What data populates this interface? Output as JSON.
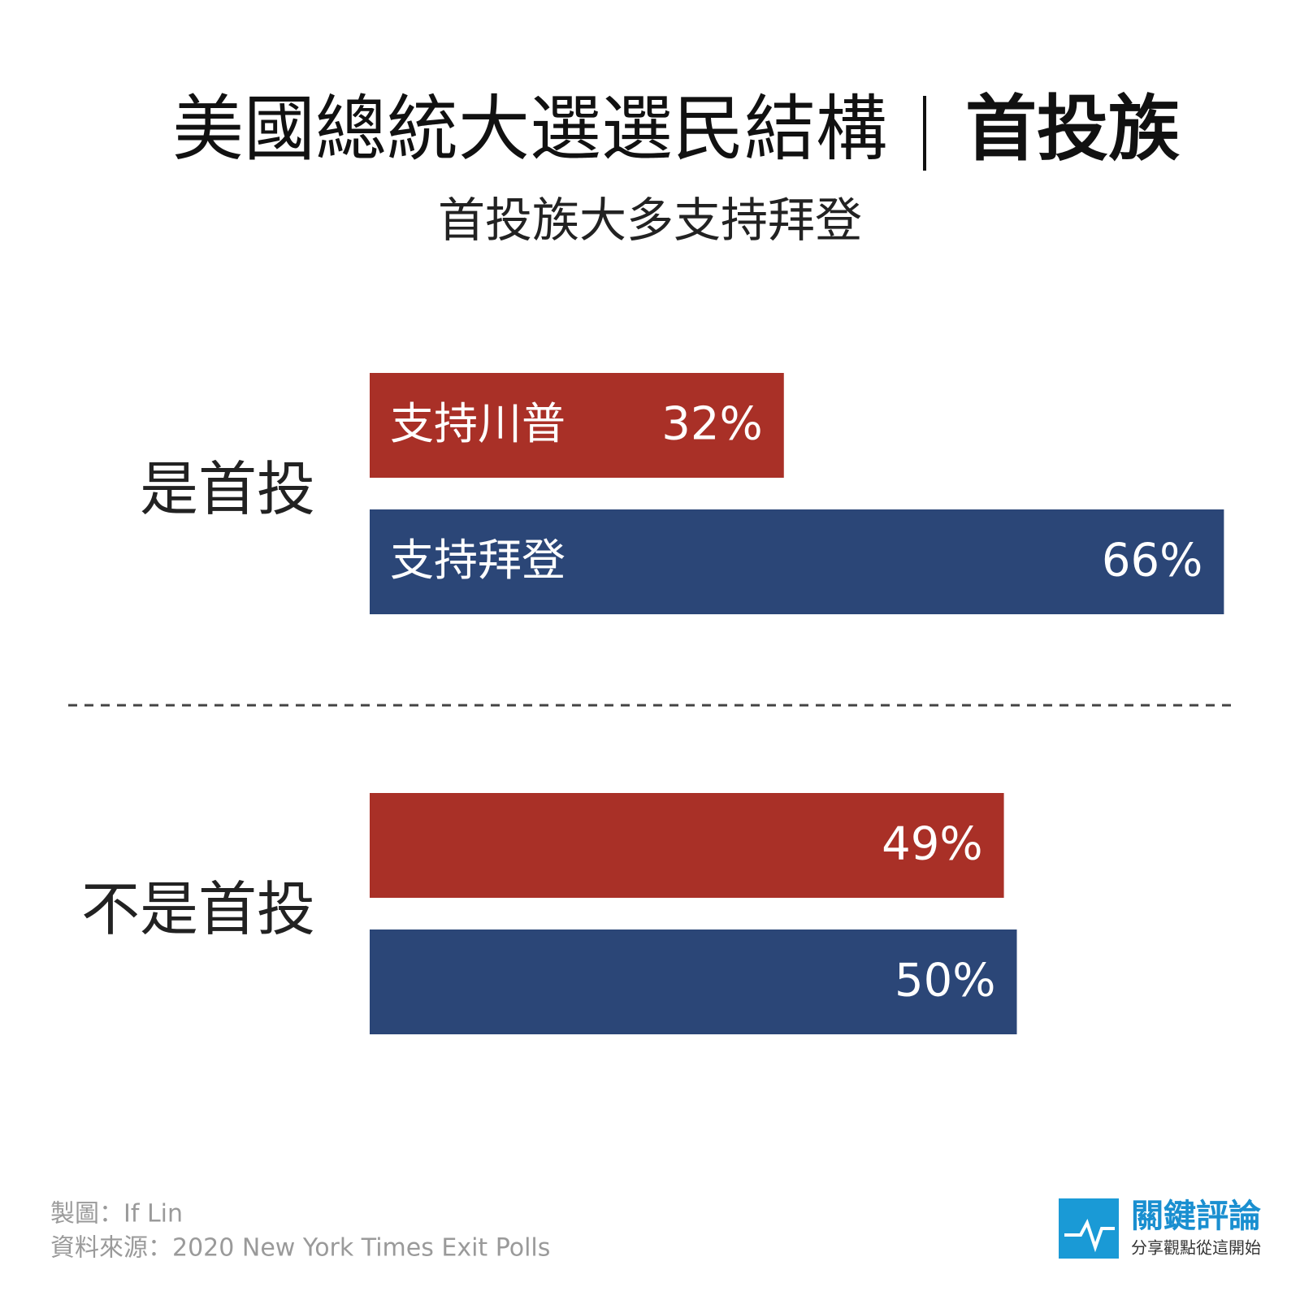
{
  "chart_data": {
    "type": "hbar",
    "title": "美國總統大選選民結構",
    "title_highlight": "首投族",
    "subtitle": "首投族大多支持拜登",
    "categories": [
      "是首投",
      "不是首投"
    ],
    "series": [
      {
        "name": "支持川普",
        "color": "#a93027",
        "values": [
          32,
          49
        ],
        "value_labels": [
          "32%",
          "49%"
        ]
      },
      {
        "name": "支持拜登",
        "color": "#2b4677",
        "values": [
          66,
          50
        ],
        "value_labels": [
          "66%",
          "50%"
        ]
      }
    ],
    "xlim": [
      0,
      100
    ],
    "credits": [
      "製圖：If Lin",
      "資料來源：2020 New York Times Exit Polls"
    ],
    "logo": {
      "name": "關鍵評論",
      "slogan": "分享觀點從這開始"
    }
  }
}
